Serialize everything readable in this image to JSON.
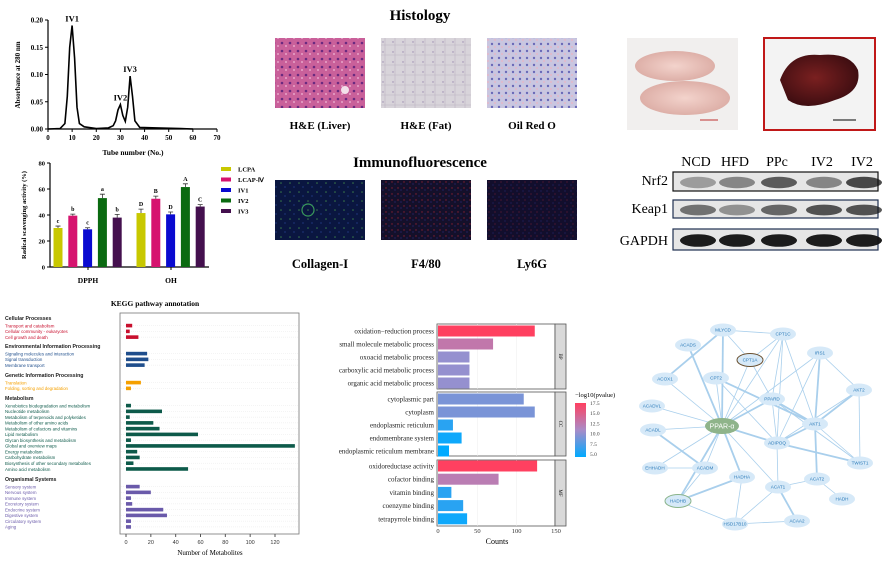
{
  "colors": {
    "lcpa": "#c8c800",
    "lcap4": "#d6136f",
    "iv1": "#0a0ad0",
    "iv2": "#0a6a10",
    "iv3": "#44104e",
    "cellular": "#c8102e",
    "environmental": "#1f4e8c",
    "genetic": "#f5a000",
    "metabolism": "#0d5a4a",
    "organismal": "#6a5aaa",
    "pvalue_low": "#00aaff",
    "pvalue_mid": "#a98cc8",
    "pvalue_high": "#ff4060",
    "node": "#d6e9f8",
    "node_text": "#2a7ab8",
    "hub": "#8fb48a",
    "edge": "#a9cfec"
  },
  "histology": {
    "title": "Histology",
    "panels": [
      {
        "label": "H&E (Liver)",
        "stain": "he-liver"
      },
      {
        "label": "H&E (Fat)",
        "stain": "he-fat"
      },
      {
        "label": "Oil Red O",
        "stain": "oil-red-o"
      }
    ]
  },
  "immunofluorescence": {
    "title": "Immunofluorescence",
    "panels": [
      {
        "label": "Collagen-I",
        "stain": "collagen"
      },
      {
        "label": "F4/80",
        "stain": "f480"
      },
      {
        "label": "Ly6G",
        "stain": "ly6g"
      }
    ]
  },
  "western_blot": {
    "lanes": [
      "NCD",
      "HFD",
      "PPc",
      "IV2",
      "IV2"
    ],
    "rows": [
      {
        "label": "Nrf2",
        "intensity": [
          0.35,
          0.45,
          0.65,
          0.45,
          0.75
        ]
      },
      {
        "label": "Keap1",
        "intensity": [
          0.55,
          0.4,
          0.6,
          0.7,
          0.7
        ]
      },
      {
        "label": "GAPDH",
        "intensity": [
          0.95,
          0.95,
          0.95,
          0.95,
          0.95
        ]
      }
    ]
  },
  "chart_data": [
    {
      "type": "line",
      "xlabel": "Tube number (No.)",
      "ylabel": "Absorbance at 280 nm",
      "xlim": [
        0,
        70
      ],
      "ylim": [
        0,
        0.2
      ],
      "xticks": [
        0,
        10,
        20,
        30,
        40,
        50,
        60,
        70
      ],
      "yticks": [
        "0.00",
        "0.05",
        "0.10",
        "0.15",
        "0.20"
      ],
      "x": [
        0,
        5,
        7,
        8,
        9,
        10,
        11,
        12,
        13,
        15,
        20,
        25,
        27,
        28,
        29,
        30,
        31,
        32,
        33,
        34,
        35,
        36,
        38,
        45,
        55,
        60
      ],
      "y": [
        0,
        0.001,
        0.01,
        0.06,
        0.15,
        0.19,
        0.13,
        0.04,
        0.01,
        0.004,
        0.001,
        0.002,
        0.006,
        0.015,
        0.035,
        0.045,
        0.025,
        0.014,
        0.04,
        0.097,
        0.06,
        0.015,
        0.003,
        0.002,
        0.001,
        0
      ],
      "annotations": [
        {
          "text": "IV1",
          "x": 10,
          "y": 0.19
        },
        {
          "text": "IV2",
          "x": 30,
          "y": 0.045
        },
        {
          "text": "IV3",
          "x": 34,
          "y": 0.097
        }
      ]
    },
    {
      "type": "bar",
      "ylabel": "Radical scavenging activity  (%)",
      "ylim": [
        0,
        80
      ],
      "yticks": [
        0,
        20,
        40,
        60,
        80
      ],
      "categories": [
        "DPPH",
        "OH"
      ],
      "legend": "right",
      "series": [
        {
          "name": "LCPA",
          "values": [
            30,
            41.5
          ],
          "errors": [
            1.5,
            3
          ],
          "letters": [
            "c",
            "D"
          ],
          "color_key": "lcpa"
        },
        {
          "name": "LCAP-Ⅳ",
          "values": [
            39.5,
            52.5
          ],
          "errors": [
            1.2,
            2
          ],
          "letters": [
            "b",
            "B"
          ],
          "color_key": "lcap4"
        },
        {
          "name": "IV1",
          "values": [
            29,
            40.5
          ],
          "errors": [
            1.2,
            1.8
          ],
          "letters": [
            "c",
            "D"
          ],
          "color_key": "iv1"
        },
        {
          "name": "IV2",
          "values": [
            53,
            61.5
          ],
          "errors": [
            3,
            2.5
          ],
          "letters": [
            "a",
            "A"
          ],
          "color_key": "iv2"
        },
        {
          "name": "IV3",
          "values": [
            38,
            46.5
          ],
          "errors": [
            2.5,
            1.5
          ],
          "letters": [
            "b",
            "C"
          ],
          "color_key": "iv3"
        }
      ]
    },
    {
      "type": "bar",
      "orientation": "horizontal",
      "title": "KEGG pathway annotation",
      "xlabel": "Number of Metabolites",
      "xlim": [
        0,
        140
      ],
      "xticks": [
        0,
        20,
        40,
        60,
        80,
        100,
        120
      ],
      "groups": [
        {
          "name": "Cellular Processes",
          "color_key": "cellular",
          "items": [
            {
              "label": "Transport and catabolism",
              "value": 5
            },
            {
              "label": "Cellular community - eukaryotes",
              "value": 3
            },
            {
              "label": "Cell growth and death",
              "value": 10
            }
          ]
        },
        {
          "name": "Environmental Information Processing",
          "color_key": "environmental",
          "items": [
            {
              "label": "Signaling molecules and interaction",
              "value": 17
            },
            {
              "label": "Signal transduction",
              "value": 18
            },
            {
              "label": "Membrane transport",
              "value": 15
            }
          ]
        },
        {
          "name": "Genetic Information Processing",
          "color_key": "genetic",
          "items": [
            {
              "label": "Translation",
              "value": 12
            },
            {
              "label": "Folding, sorting and degradation",
              "value": 4
            }
          ]
        },
        {
          "name": "Metabolism",
          "color_key": "metabolism",
          "items": [
            {
              "label": "Xenobiotics biodegradation and metabolism",
              "value": 4
            },
            {
              "label": "Nucleotide metabolism",
              "value": 29
            },
            {
              "label": "Metabolism of terpenoids and polyketides",
              "value": 3
            },
            {
              "label": "Metabolism of other amino acids",
              "value": 22
            },
            {
              "label": "Metabolism of cofactors and vitamins",
              "value": 27
            },
            {
              "label": "Lipid metabolism",
              "value": 58
            },
            {
              "label": "Glycan biosynthesis and metabolism",
              "value": 4
            },
            {
              "label": "Global and overview maps",
              "value": 136
            },
            {
              "label": "Energy metabolism",
              "value": 9
            },
            {
              "label": "Carbohydrate metabolism",
              "value": 11
            },
            {
              "label": "Biosynthesis of other secondary metabolites",
              "value": 6
            },
            {
              "label": "Amino acid metabolism",
              "value": 50
            }
          ]
        },
        {
          "name": "Organismal Systems",
          "color_key": "organismal",
          "items": [
            {
              "label": "Sensory system",
              "value": 11
            },
            {
              "label": "Nervous system",
              "value": 20
            },
            {
              "label": "Immune system",
              "value": 4
            },
            {
              "label": "Excretory system",
              "value": 5
            },
            {
              "label": "Endocrine system",
              "value": 30
            },
            {
              "label": "Digestive system",
              "value": 33
            },
            {
              "label": "Circulatory system",
              "value": 4
            },
            {
              "label": "Aging",
              "value": 4
            }
          ]
        }
      ]
    },
    {
      "type": "bar",
      "orientation": "horizontal",
      "xlabel": "Counts",
      "xlim": [
        0,
        150
      ],
      "xticks": [
        0,
        50,
        100,
        150
      ],
      "legend": {
        "title": "−log10(pvalue)",
        "ticks": [
          "17.5",
          "15.0",
          "12.5",
          "10.0",
          "7.5",
          "5.0"
        ],
        "range": [
          5,
          17.5
        ]
      },
      "facets": [
        {
          "name": "BP",
          "items": [
            {
              "label": "oxidation−reduction process",
              "value": 123,
              "p": 17.5
            },
            {
              "label": "small molecule metabolic process",
              "value": 70,
              "p": 13
            },
            {
              "label": "oxoacid metabolic process",
              "value": 40,
              "p": 10.5
            },
            {
              "label": "carboxylic acid metabolic process",
              "value": 40,
              "p": 10.5
            },
            {
              "label": "organic acid metabolic process",
              "value": 40,
              "p": 10.5
            }
          ]
        },
        {
          "name": "CC",
          "items": [
            {
              "label": "cytoplasmic part",
              "value": 109,
              "p": 9.5
            },
            {
              "label": "cytoplasm",
              "value": 123,
              "p": 9.5
            },
            {
              "label": "endoplasmic reticulum",
              "value": 19,
              "p": 6.5
            },
            {
              "label": "endomembrane system",
              "value": 30,
              "p": 5.5
            },
            {
              "label": "endoplasmic reticulum membrane",
              "value": 14,
              "p": 4.8
            }
          ]
        },
        {
          "name": "MF",
          "items": [
            {
              "label": "oxidoreductase activity",
              "value": 126,
              "p": 17.5
            },
            {
              "label": "cofactor binding",
              "value": 77,
              "p": 12.5
            },
            {
              "label": "vitamin binding",
              "value": 17,
              "p": 6.5
            },
            {
              "label": "coenzyme binding",
              "value": 32,
              "p": 6.5
            },
            {
              "label": "tetrapyrrole binding",
              "value": 37,
              "p": 5.5
            }
          ]
        }
      ]
    }
  ],
  "network": {
    "nodes": [
      {
        "id": "MLYCD"
      },
      {
        "id": "CPT1C"
      },
      {
        "id": "ACADS"
      },
      {
        "id": "CPT1A",
        "highlight": "brown"
      },
      {
        "id": "IRS1"
      },
      {
        "id": "ACOX1"
      },
      {
        "id": "CPT2"
      },
      {
        "id": "AKT2"
      },
      {
        "id": "PPARD"
      },
      {
        "id": "ACADVL"
      },
      {
        "id": "PPAR-α",
        "hub": true
      },
      {
        "id": "AKT1"
      },
      {
        "id": "ACADL"
      },
      {
        "id": "ADIPOQ"
      },
      {
        "id": "TWIST1"
      },
      {
        "id": "EHHADH"
      },
      {
        "id": "ACADM"
      },
      {
        "id": "HADHA"
      },
      {
        "id": "ACAT2"
      },
      {
        "id": "ACAT1"
      },
      {
        "id": "HADHB",
        "highlight": "green"
      },
      {
        "id": "HADH"
      },
      {
        "id": "HSD17B10"
      },
      {
        "id": "ACAA2"
      }
    ],
    "edges": [
      [
        "PPAR-α",
        "MLYCD"
      ],
      [
        "PPAR-α",
        "CPT1C"
      ],
      [
        "PPAR-α",
        "CPT1A"
      ],
      [
        "PPAR-α",
        "ACADS"
      ],
      [
        "PPAR-α",
        "ACOX1"
      ],
      [
        "PPAR-α",
        "CPT2"
      ],
      [
        "PPAR-α",
        "PPARD"
      ],
      [
        "PPAR-α",
        "ACADVL"
      ],
      [
        "PPAR-α",
        "ACADL"
      ],
      [
        "PPAR-α",
        "ADIPOQ"
      ],
      [
        "PPAR-α",
        "EHHADH"
      ],
      [
        "PPAR-α",
        "ACADM"
      ],
      [
        "PPAR-α",
        "HADHA"
      ],
      [
        "PPAR-α",
        "ACAT1"
      ],
      [
        "PPAR-α",
        "IRS1"
      ],
      [
        "PPAR-α",
        "HADHB"
      ],
      [
        "MLYCD",
        "CPT1C"
      ],
      [
        "MLYCD",
        "CPT1A"
      ],
      [
        "MLYCD",
        "ACOX1"
      ],
      [
        "CPT1A",
        "CPT1C"
      ],
      [
        "CPT1A",
        "PPARD"
      ],
      [
        "CPT2",
        "AKT1"
      ],
      [
        "CPT2",
        "ADIPOQ"
      ],
      [
        "PPARD",
        "CPT1C"
      ],
      [
        "PPARD",
        "AKT1"
      ],
      [
        "PPARD",
        "ADIPOQ"
      ],
      [
        "PPARD",
        "TWIST1"
      ],
      [
        "IRS1",
        "AKT1"
      ],
      [
        "IRS1",
        "AKT2"
      ],
      [
        "IRS1",
        "ADIPOQ"
      ],
      [
        "AKT1",
        "AKT2"
      ],
      [
        "AKT1",
        "TWIST1"
      ],
      [
        "AKT1",
        "CPT1C"
      ],
      [
        "AKT1",
        "ADIPOQ"
      ],
      [
        "AKT2",
        "TWIST1"
      ],
      [
        "AKT2",
        "ADIPOQ"
      ],
      [
        "TWIST1",
        "ADIPOQ"
      ],
      [
        "ADIPOQ",
        "ACAT1"
      ],
      [
        "ADIPOQ",
        "CPT1C"
      ],
      [
        "ACADM",
        "ACADL"
      ],
      [
        "ACADM",
        "EHHADH"
      ],
      [
        "ACADM",
        "HADHB"
      ],
      [
        "HADHA",
        "HADHB"
      ],
      [
        "HADHA",
        "HSD17B10"
      ],
      [
        "ACAT1",
        "ACAT2"
      ],
      [
        "ACAT1",
        "ACAA2"
      ],
      [
        "ACAT1",
        "HSD17B10"
      ],
      [
        "ACAT2",
        "HADH"
      ],
      [
        "ACAT2",
        "AKT1"
      ],
      [
        "HADHB",
        "HSD17B10"
      ],
      [
        "HSD17B10",
        "ACAA2"
      ]
    ]
  }
}
